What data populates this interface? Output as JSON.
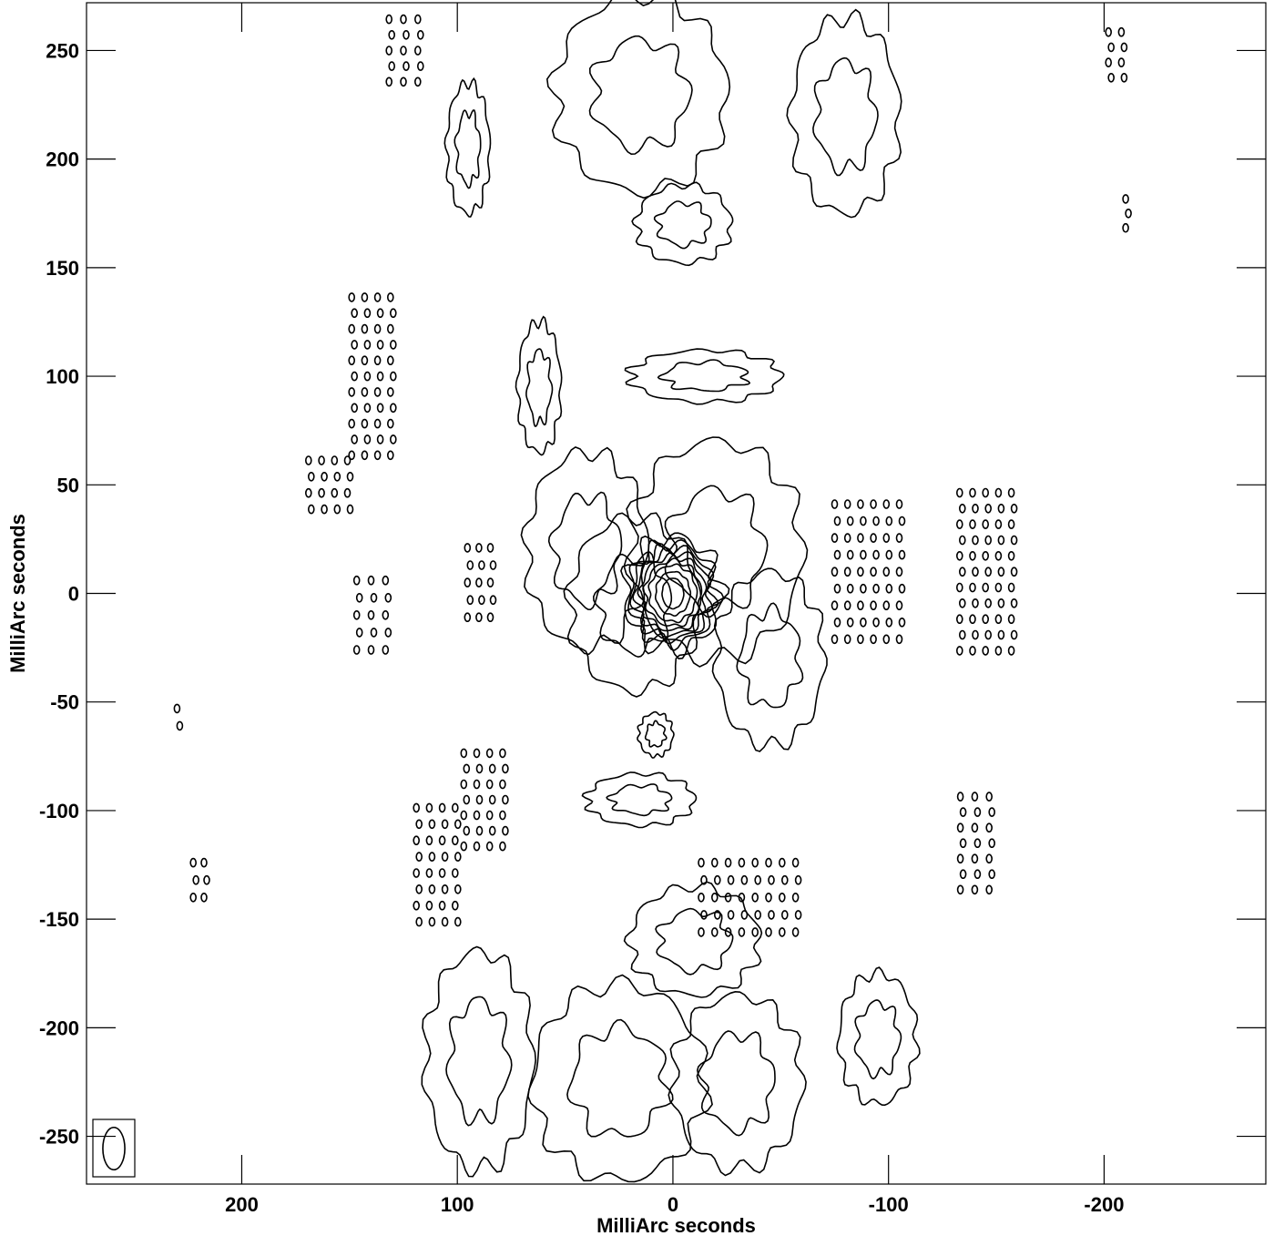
{
  "chart_data": {
    "type": "contour",
    "xlabel": "MilliArc seconds",
    "ylabel": "MilliArc seconds",
    "xlim": [
      272,
      -275
    ],
    "ylim": [
      -272,
      272
    ],
    "x_ticks": [
      200,
      100,
      0,
      -100,
      -200
    ],
    "y_ticks": [
      250,
      200,
      150,
      100,
      50,
      0,
      -50,
      -100,
      -150,
      -200,
      -250
    ],
    "x_tick_labels": [
      "200",
      "100",
      "0",
      "-100",
      "-200"
    ],
    "y_tick_labels": [
      "250",
      "200",
      "150",
      "100",
      "50",
      "0",
      "-50",
      "-100",
      "-150",
      "-200",
      "-250"
    ],
    "grid": false,
    "colors": {
      "line": "#000000",
      "background": "#ffffff"
    },
    "core": {
      "center": [
        0,
        0
      ],
      "levels": [
        {
          "rx": 5,
          "ry": 7
        },
        {
          "rx": 8,
          "ry": 10
        },
        {
          "rx": 11,
          "ry": 13
        },
        {
          "rx": 13,
          "ry": 15
        },
        {
          "rx": 15,
          "ry": 17
        },
        {
          "rx": 17,
          "ry": 19
        },
        {
          "rx": 18.5,
          "ry": 21
        },
        {
          "rx": 20,
          "ry": 23
        },
        {
          "rx": 22,
          "ry": 26
        }
      ]
    },
    "features": [
      {
        "kind": "blob",
        "x": 18,
        "y": -5,
        "rx": 30,
        "ry": 40
      },
      {
        "kind": "blob",
        "x": -20,
        "y": 20,
        "rx": 40,
        "ry": 50
      },
      {
        "kind": "blob",
        "x": 40,
        "y": 20,
        "rx": 28,
        "ry": 45
      },
      {
        "kind": "blob",
        "x": -45,
        "y": -30,
        "rx": 25,
        "ry": 40
      },
      {
        "kind": "blob",
        "x": -5,
        "y": 170,
        "rx": 22,
        "ry": 18
      },
      {
        "kind": "blob",
        "x": -15,
        "y": 100,
        "rx": 35,
        "ry": 12
      },
      {
        "kind": "blob",
        "x": 62,
        "y": 95,
        "rx": 10,
        "ry": 30
      },
      {
        "kind": "blob",
        "x": 15,
        "y": 230,
        "rx": 40,
        "ry": 45
      },
      {
        "kind": "blob",
        "x": -80,
        "y": 220,
        "rx": 25,
        "ry": 45
      },
      {
        "kind": "blob",
        "x": 95,
        "y": 205,
        "rx": 10,
        "ry": 30
      },
      {
        "kind": "blob",
        "x": 90,
        "y": -215,
        "rx": 25,
        "ry": 50
      },
      {
        "kind": "blob",
        "x": 25,
        "y": -225,
        "rx": 40,
        "ry": 45
      },
      {
        "kind": "blob",
        "x": -30,
        "y": -225,
        "rx": 30,
        "ry": 40
      },
      {
        "kind": "blob",
        "x": -95,
        "y": -205,
        "rx": 18,
        "ry": 30
      },
      {
        "kind": "blob",
        "x": 15,
        "y": -95,
        "rx": 25,
        "ry": 12
      },
      {
        "kind": "blob",
        "x": -10,
        "y": -160,
        "rx": 30,
        "ry": 25
      },
      {
        "kind": "blob",
        "x": 8,
        "y": -65,
        "rx": 8,
        "ry": 10
      },
      {
        "kind": "ripple",
        "x": 125,
        "y": 250,
        "rx": 10,
        "ry": 18
      },
      {
        "kind": "ripple",
        "x": 160,
        "y": 50,
        "rx": 12,
        "ry": 15
      },
      {
        "kind": "ripple",
        "x": 140,
        "y": 100,
        "rx": 12,
        "ry": 40
      },
      {
        "kind": "ripple",
        "x": 140,
        "y": -10,
        "rx": 10,
        "ry": 20
      },
      {
        "kind": "ripple",
        "x": 90,
        "y": 5,
        "rx": 8,
        "ry": 20
      },
      {
        "kind": "ripple",
        "x": -90,
        "y": 10,
        "rx": 18,
        "ry": 35
      },
      {
        "kind": "ripple",
        "x": -145,
        "y": 10,
        "rx": 15,
        "ry": 40
      },
      {
        "kind": "ripple",
        "x": 110,
        "y": -125,
        "rx": 12,
        "ry": 30
      },
      {
        "kind": "ripple",
        "x": -140,
        "y": -115,
        "rx": 10,
        "ry": 25
      },
      {
        "kind": "ripple",
        "x": -205,
        "y": 248,
        "rx": 6,
        "ry": 14
      },
      {
        "kind": "ripple",
        "x": -210,
        "y": 175,
        "rx": 4,
        "ry": 10
      },
      {
        "kind": "ripple",
        "x": 230,
        "y": -57,
        "rx": 3,
        "ry": 8
      },
      {
        "kind": "ripple",
        "x": 220,
        "y": -132,
        "rx": 5,
        "ry": 12
      },
      {
        "kind": "ripple",
        "x": 88,
        "y": -95,
        "rx": 12,
        "ry": 25
      },
      {
        "kind": "ripple",
        "x": -35,
        "y": -140,
        "rx": 25,
        "ry": 20
      }
    ],
    "beam": {
      "major": 13,
      "minor": 8.5
    }
  }
}
